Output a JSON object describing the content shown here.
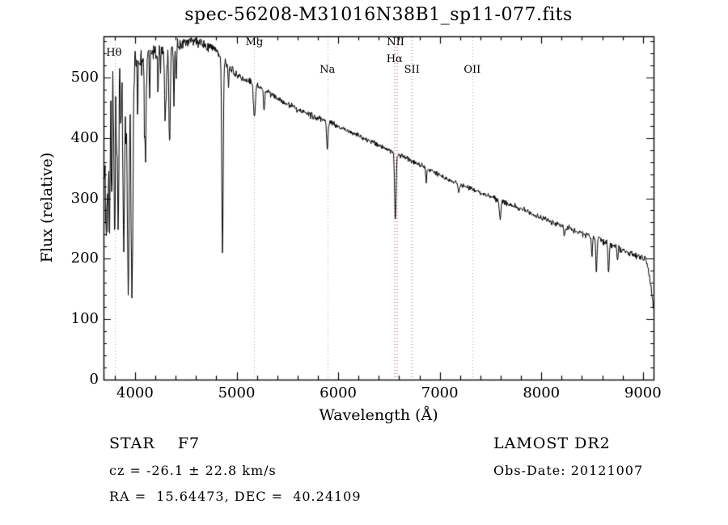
{
  "title": "spec-56208-M31016N38B1_sp11-077.fits",
  "axes": {
    "xlabel": "Wavelength (Å)",
    "ylabel": "Flux (relative)"
  },
  "footer": {
    "class_label": "STAR    F7",
    "survey": "LAMOST DR2",
    "cz": "cz = -26.1 ± 22.8 km/s",
    "obs_date": "Obs-Date: 20121007",
    "coords": "RA =  15.64473, DEC =  40.24109"
  },
  "colors": {
    "spectrum": "#000000",
    "axis": "#000000",
    "marker_gray": "#aaaaaa",
    "marker_red": "#dd7777"
  },
  "chart_data": {
    "type": "line",
    "title": "spec-56208-M31016N38B1_sp11-077.fits",
    "xlabel": "Wavelength (Å)",
    "ylabel": "Flux (relative)",
    "xlim": [
      3690,
      9105
    ],
    "ylim": [
      0,
      568
    ],
    "grid": false,
    "x_ticks": {
      "values": [
        4000,
        5000,
        6000,
        7000,
        8000,
        9000
      ],
      "labels": [
        "4000",
        "5000",
        "6000",
        "7000",
        "8000",
        "9000"
      ],
      "minor_step": 200
    },
    "y_ticks": {
      "values": [
        0,
        100,
        200,
        300,
        400,
        500
      ],
      "labels": [
        "0",
        "100",
        "200",
        "300",
        "400",
        "500"
      ],
      "minor_step": 20
    },
    "continuum": [
      [
        3690,
        330
      ],
      [
        3710,
        400
      ],
      [
        3730,
        460
      ],
      [
        3760,
        495
      ],
      [
        3800,
        515
      ],
      [
        3850,
        522
      ],
      [
        3900,
        520
      ],
      [
        3950,
        522
      ],
      [
        4000,
        528
      ],
      [
        4100,
        535
      ],
      [
        4200,
        542
      ],
      [
        4300,
        548
      ],
      [
        4400,
        553
      ],
      [
        4500,
        557
      ],
      [
        4600,
        560
      ],
      [
        4700,
        553
      ],
      [
        4800,
        542
      ],
      [
        4900,
        522
      ],
      [
        5000,
        505
      ],
      [
        5100,
        495
      ],
      [
        5200,
        486
      ],
      [
        5300,
        477
      ],
      [
        5400,
        466
      ],
      [
        5500,
        456
      ],
      [
        5600,
        448
      ],
      [
        5700,
        440
      ],
      [
        5800,
        433
      ],
      [
        5900,
        427
      ],
      [
        6000,
        419
      ],
      [
        6100,
        411
      ],
      [
        6200,
        403
      ],
      [
        6300,
        396
      ],
      [
        6400,
        388
      ],
      [
        6500,
        380
      ],
      [
        6600,
        372
      ],
      [
        6700,
        364
      ],
      [
        6800,
        356
      ],
      [
        6900,
        347
      ],
      [
        7000,
        338
      ],
      [
        7200,
        323
      ],
      [
        7400,
        309
      ],
      [
        7600,
        296
      ],
      [
        7800,
        282
      ],
      [
        8000,
        268
      ],
      [
        8200,
        255
      ],
      [
        8400,
        243
      ],
      [
        8600,
        230
      ],
      [
        8800,
        215
      ],
      [
        9000,
        200
      ],
      [
        9030,
        197
      ],
      [
        9060,
        175
      ],
      [
        9090,
        140
      ],
      [
        9105,
        120
      ]
    ],
    "absorption_lines": [
      [
        3712,
        150,
        5
      ],
      [
        3722,
        120,
        4
      ],
      [
        3734,
        200,
        5
      ],
      [
        3750,
        220,
        5
      ],
      [
        3770,
        200,
        5
      ],
      [
        3798,
        260,
        6
      ],
      [
        3820,
        140,
        4
      ],
      [
        3835,
        280,
        6
      ],
      [
        3860,
        120,
        4
      ],
      [
        3889,
        300,
        8
      ],
      [
        3910,
        100,
        4
      ],
      [
        3933,
        360,
        9
      ],
      [
        3970,
        380,
        9
      ],
      [
        4026,
        90,
        4
      ],
      [
        4101,
        170,
        8
      ],
      [
        4144,
        70,
        4
      ],
      [
        4226,
        80,
        4
      ],
      [
        4300,
        100,
        9
      ],
      [
        4340,
        160,
        7
      ],
      [
        4383,
        90,
        5
      ],
      [
        4405,
        60,
        4
      ],
      [
        4861,
        320,
        7
      ],
      [
        4920,
        40,
        4
      ],
      [
        5175,
        55,
        9
      ],
      [
        5270,
        35,
        6
      ],
      [
        5893,
        45,
        7
      ],
      [
        6563,
        115,
        7
      ],
      [
        6867,
        22,
        5
      ],
      [
        7186,
        15,
        6
      ],
      [
        7594,
        30,
        8
      ],
      [
        8226,
        15,
        6
      ],
      [
        8498,
        35,
        5
      ],
      [
        8542,
        55,
        6
      ],
      [
        8662,
        50,
        6
      ],
      [
        8750,
        25,
        5
      ]
    ],
    "noise_profile": [
      [
        3690,
        42
      ],
      [
        3750,
        38
      ],
      [
        3850,
        30
      ],
      [
        3950,
        26
      ],
      [
        4050,
        20
      ],
      [
        4200,
        15
      ],
      [
        4400,
        11
      ],
      [
        4700,
        8
      ],
      [
        5000,
        6
      ],
      [
        5500,
        5
      ],
      [
        6000,
        4.5
      ],
      [
        6500,
        4
      ],
      [
        7000,
        4
      ],
      [
        7600,
        4.5
      ],
      [
        8200,
        5
      ],
      [
        8800,
        5.5
      ],
      [
        9105,
        6
      ]
    ],
    "marker_lines": [
      {
        "wavelength": 3798,
        "color": "#aaaaaa"
      },
      {
        "wavelength": 5175,
        "color": "#aaaaaa"
      },
      {
        "wavelength": 5893,
        "color": "#aaaaaa"
      },
      {
        "wavelength": 6548,
        "color": "#dd7777"
      },
      {
        "wavelength": 6563,
        "color": "#dd7777"
      },
      {
        "wavelength": 6583,
        "color": "#dd7777"
      },
      {
        "wavelength": 6716,
        "color": "#aaaaaa"
      },
      {
        "wavelength": 6731,
        "color": "#aaaaaa"
      },
      {
        "wavelength": 7320,
        "color": "#aaaaaa"
      }
    ],
    "marker_labels": [
      {
        "text": "Hθ",
        "wavelength": 3700,
        "flux": 535,
        "align": "left"
      },
      {
        "text": "Mg",
        "wavelength": 5175,
        "flux": 552,
        "align": "center"
      },
      {
        "text": "Na",
        "wavelength": 5893,
        "flux": 506,
        "align": "center"
      },
      {
        "text": "NII",
        "wavelength": 6565,
        "flux": 552,
        "align": "center"
      },
      {
        "text": "Hα",
        "wavelength": 6555,
        "flux": 524,
        "align": "center"
      },
      {
        "text": "SII",
        "wavelength": 6726,
        "flux": 506,
        "align": "center"
      },
      {
        "text": "OII",
        "wavelength": 7320,
        "flux": 506,
        "align": "center"
      }
    ]
  }
}
